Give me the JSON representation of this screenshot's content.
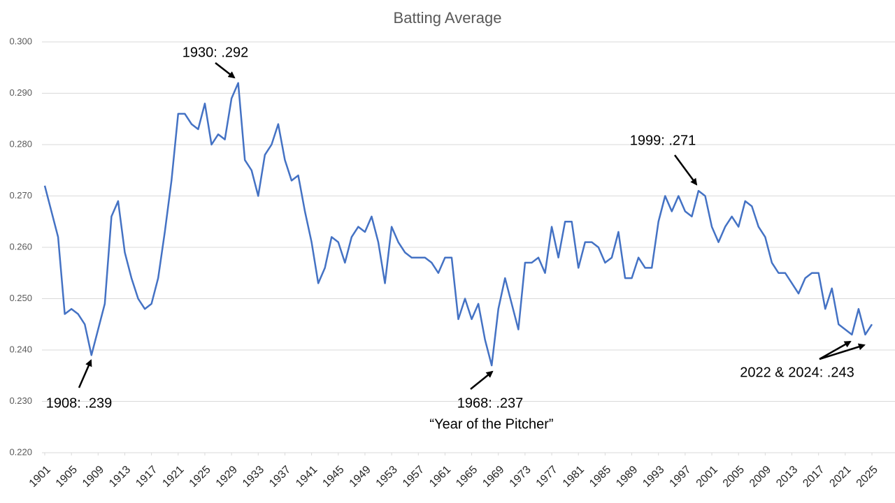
{
  "chart_data": {
    "type": "line",
    "title": "Batting Average",
    "x": [
      1901,
      1902,
      1903,
      1904,
      1905,
      1906,
      1907,
      1908,
      1909,
      1910,
      1911,
      1912,
      1913,
      1914,
      1915,
      1916,
      1917,
      1918,
      1919,
      1920,
      1921,
      1922,
      1923,
      1924,
      1925,
      1926,
      1927,
      1928,
      1929,
      1930,
      1931,
      1932,
      1933,
      1934,
      1935,
      1936,
      1937,
      1938,
      1939,
      1940,
      1941,
      1942,
      1943,
      1944,
      1945,
      1946,
      1947,
      1948,
      1949,
      1950,
      1951,
      1952,
      1953,
      1954,
      1955,
      1956,
      1957,
      1958,
      1959,
      1960,
      1961,
      1962,
      1963,
      1964,
      1965,
      1966,
      1967,
      1968,
      1969,
      1970,
      1971,
      1972,
      1973,
      1974,
      1975,
      1976,
      1977,
      1978,
      1979,
      1980,
      1981,
      1982,
      1983,
      1984,
      1985,
      1986,
      1987,
      1988,
      1989,
      1990,
      1991,
      1992,
      1993,
      1994,
      1995,
      1996,
      1997,
      1998,
      1999,
      2000,
      2001,
      2002,
      2003,
      2004,
      2005,
      2006,
      2007,
      2008,
      2009,
      2010,
      2011,
      2012,
      2013,
      2014,
      2015,
      2016,
      2017,
      2018,
      2019,
      2020,
      2021,
      2022,
      2023,
      2024,
      2025
    ],
    "series": [
      {
        "color": "#4472c4",
        "values": [
          0.272,
          0.267,
          0.262,
          0.247,
          0.248,
          0.247,
          0.245,
          0.239,
          0.244,
          0.249,
          0.266,
          0.269,
          0.259,
          0.254,
          0.25,
          0.248,
          0.249,
          0.254,
          0.263,
          0.273,
          0.286,
          0.286,
          0.284,
          0.283,
          0.288,
          0.28,
          0.282,
          0.281,
          0.289,
          0.292,
          0.277,
          0.275,
          0.27,
          0.278,
          0.28,
          0.284,
          0.277,
          0.273,
          0.274,
          0.267,
          0.261,
          0.253,
          0.256,
          0.262,
          0.261,
          0.257,
          0.262,
          0.264,
          0.263,
          0.266,
          0.261,
          0.253,
          0.264,
          0.261,
          0.259,
          0.258,
          0.258,
          0.258,
          0.257,
          0.255,
          0.258,
          0.258,
          0.246,
          0.25,
          0.246,
          0.249,
          0.242,
          0.237,
          0.248,
          0.254,
          0.249,
          0.244,
          0.257,
          0.257,
          0.258,
          0.255,
          0.264,
          0.258,
          0.265,
          0.265,
          0.256,
          0.261,
          0.261,
          0.26,
          0.257,
          0.258,
          0.263,
          0.254,
          0.254,
          0.258,
          0.256,
          0.256,
          0.265,
          0.27,
          0.267,
          0.27,
          0.267,
          0.266,
          0.271,
          0.27,
          0.264,
          0.261,
          0.264,
          0.266,
          0.264,
          0.269,
          0.268,
          0.264,
          0.262,
          0.257,
          0.255,
          0.255,
          0.253,
          0.251,
          0.254,
          0.255,
          0.255,
          0.248,
          0.252,
          0.245,
          0.244,
          0.243,
          0.248,
          0.243,
          0.245
        ]
      }
    ],
    "xlim": [
      1901,
      2025
    ],
    "xticks": [
      1901,
      1905,
      1909,
      1913,
      1917,
      1921,
      1925,
      1929,
      1933,
      1937,
      1941,
      1945,
      1949,
      1953,
      1957,
      1961,
      1965,
      1969,
      1973,
      1977,
      1981,
      1985,
      1989,
      1993,
      1997,
      2001,
      2005,
      2009,
      2013,
      2017,
      2021,
      2025
    ],
    "ylim": [
      0.22,
      0.3
    ],
    "yticks": [
      {
        "value": 0.22,
        "label": "0.220"
      },
      {
        "value": 0.23,
        "label": "0.230"
      },
      {
        "value": 0.24,
        "label": "0.240"
      },
      {
        "value": 0.25,
        "label": "0.250"
      },
      {
        "value": 0.26,
        "label": "0.260"
      },
      {
        "value": 0.27,
        "label": "0.270"
      },
      {
        "value": 0.28,
        "label": "0.280"
      },
      {
        "value": 0.29,
        "label": "0.290"
      },
      {
        "value": 0.3,
        "label": "0.300"
      }
    ],
    "grid": true,
    "annotations": [
      "1930: .292",
      "1908: .239",
      "1968: .237",
      "“Year of the Pitcher”",
      "1999: .271",
      "2022 & 2024: .243"
    ]
  }
}
